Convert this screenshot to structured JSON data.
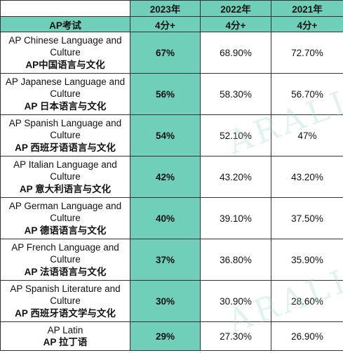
{
  "header": {
    "years": [
      "2023年",
      "2022年",
      "2021年"
    ],
    "exam_label": "AP考试",
    "score_label": "4分+"
  },
  "rows": [
    {
      "en": "AP Chinese Language and Culture",
      "zh": "AP中国语言与文化",
      "v2023": "67%",
      "v2022": "68.90%",
      "v2021": "72.70%"
    },
    {
      "en": "AP Japanese Language and Culture",
      "zh": "AP 日本语言与文化",
      "v2023": "56%",
      "v2022": "58.30%",
      "v2021": "56.70%"
    },
    {
      "en": "AP Spanish Language and Culture",
      "zh": "AP 西班牙语语言与文化",
      "v2023": "54%",
      "v2022": "52.10%",
      "v2021": "47%"
    },
    {
      "en": "AP Italian Language and Culture",
      "zh": "AP 意大利语言与文化",
      "v2023": "42%",
      "v2022": "43.20%",
      "v2021": "43.20%"
    },
    {
      "en": "AP German Language and Culture",
      "zh": "AP 德语语言与文化",
      "v2023": "40%",
      "v2022": "39.10%",
      "v2021": "37.50%"
    },
    {
      "en": "AP French Language and Culture",
      "zh": "AP 法语语言与文化",
      "v2023": "37%",
      "v2022": "36.80%",
      "v2021": "35.90%"
    },
    {
      "en": "AP Spanish Literature and Culture",
      "zh": "AP 西班牙语文学与文化",
      "v2023": "30%",
      "v2022": "30.90%",
      "v2021": "28.60%"
    },
    {
      "en": "AP Latin",
      "zh": "AP 拉丁语",
      "v2023": "29%",
      "v2022": "27.30%",
      "v2021": "26.90%"
    }
  ],
  "watermark": "ARALIA"
}
